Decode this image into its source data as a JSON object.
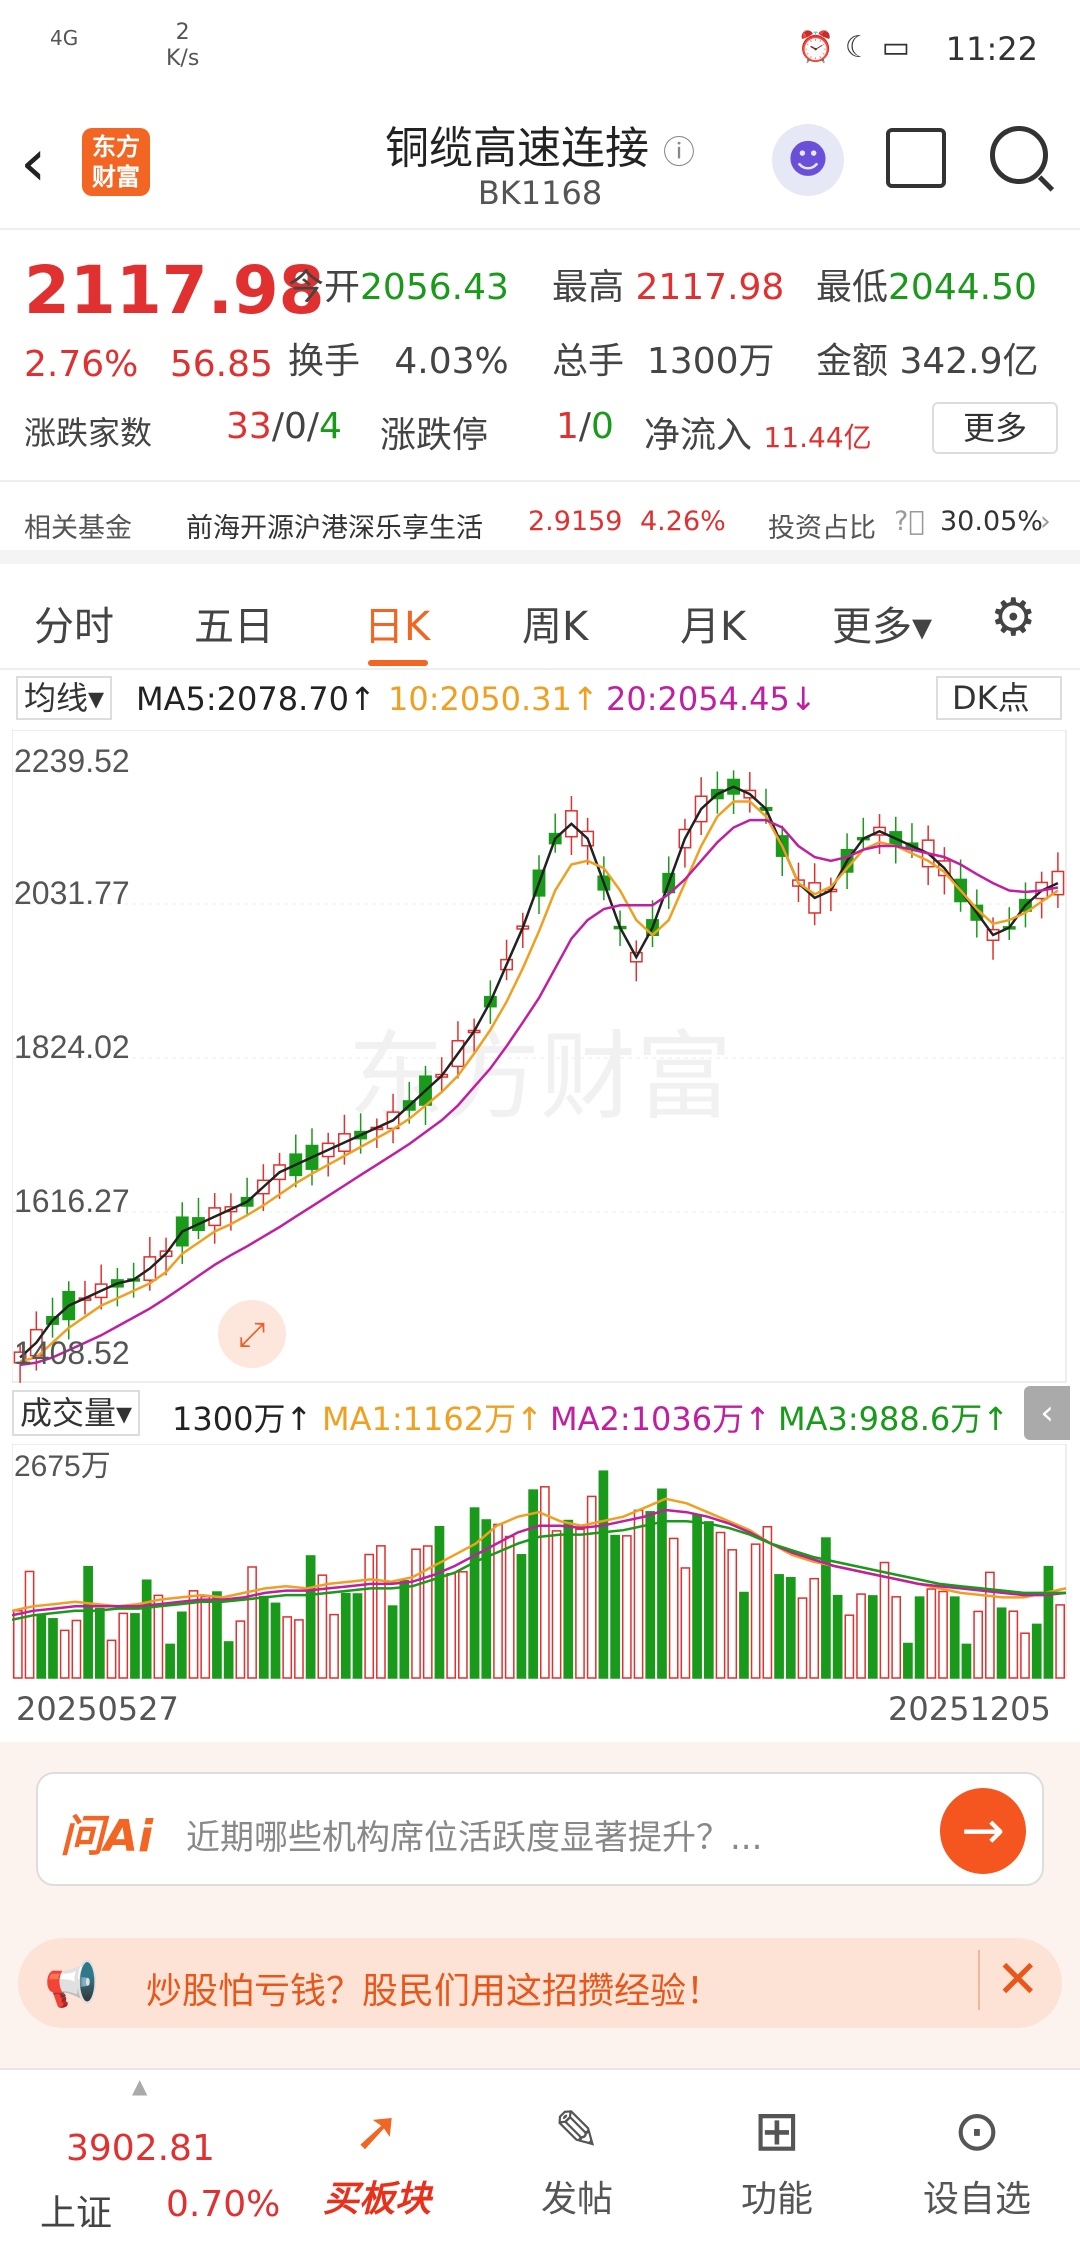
{
  "status_bar": {
    "signal": "4G",
    "speed": "2",
    "speed_unit": "K/s",
    "time": "11:22"
  },
  "header": {
    "title": "铜缆高速连接",
    "code": "BK1168",
    "logo_line1": "东方",
    "logo_line2": "财富"
  },
  "quote": {
    "price": "2117.98",
    "change_pct": "2.76%",
    "change": "56.85",
    "open_label": "今开",
    "open": "2056.43",
    "high_label": "最高",
    "high": "2117.98",
    "low_label": "最低",
    "low": "2044.50",
    "turnover_label": "换手",
    "turnover": "4.03%",
    "volume_label": "总手",
    "volume": "1300万",
    "amount_label": "金额",
    "amount": "342.9亿",
    "breadth_label": "涨跌家数",
    "breadth_up": "33",
    "breadth_flat": "0",
    "breadth_down": "4",
    "sep": "/",
    "limit_label": "涨跌停",
    "limit_up": "1",
    "limit_down": "0",
    "netflow_label": "净流入",
    "netflow": "11.44亿",
    "more_label": "更多"
  },
  "fund": {
    "label": "相关基金",
    "name": "前海开源沪港深乐享生活",
    "value": "2.9159",
    "pct": "4.26%",
    "ratio_label": "投资占比",
    "ratio": "30.05%"
  },
  "tabs": [
    {
      "label": "分时"
    },
    {
      "label": "五日"
    },
    {
      "label": "日K"
    },
    {
      "label": "周K"
    },
    {
      "label": "月K"
    },
    {
      "label": "更多▾"
    }
  ],
  "ma": {
    "selector": "均线▾",
    "ma5": "MA5:2078.70↑",
    "ma10": "10:2050.31↑",
    "ma20": "20:2054.45↓",
    "dk": "DK点",
    "colors": {
      "ma5": "#222222",
      "ma10": "#f0a020",
      "ma20": "#c020a0"
    }
  },
  "vol": {
    "selector": "成交量▾",
    "current": "1300万↑",
    "ma1": "MA1:1162万↑",
    "ma2": "MA2:1036万↑",
    "ma3": "MA3:988.6万↑"
  },
  "chart_data": [
    {
      "type": "candlestick",
      "y_ticks": [
        "2239.52",
        "2031.77",
        "1824.02",
        "1616.27",
        "1408.52"
      ],
      "ylim": [
        1408.52,
        2239.52
      ],
      "watermark": "东方财富",
      "series": [
        {
          "name": "MA5",
          "values": [
            1420,
            1440,
            1470,
            1490,
            1500,
            1510,
            1520,
            1525,
            1540,
            1560,
            1590,
            1600,
            1610,
            1620,
            1630,
            1650,
            1670,
            1680,
            1690,
            1700,
            1710,
            1720,
            1730,
            1740,
            1760,
            1780,
            1800,
            1830,
            1860,
            1900,
            1950,
            2000,
            2060,
            2120,
            2140,
            2120,
            2060,
            2000,
            1960,
            2000,
            2060,
            2120,
            2160,
            2180,
            2190,
            2180,
            2160,
            2110,
            2060,
            2040,
            2050,
            2090,
            2120,
            2130,
            2120,
            2110,
            2100,
            2080,
            2050,
            2020,
            1990,
            2000,
            2030,
            2050,
            2060
          ]
        },
        {
          "name": "MA10",
          "values": [
            1415,
            1420,
            1440,
            1460,
            1475,
            1490,
            1500,
            1510,
            1520,
            1535,
            1560,
            1575,
            1590,
            1600,
            1612,
            1625,
            1640,
            1655,
            1668,
            1680,
            1692,
            1704,
            1716,
            1728,
            1742,
            1760,
            1778,
            1800,
            1830,
            1862,
            1900,
            1945,
            1995,
            2050,
            2085,
            2090,
            2080,
            2050,
            2010,
            1990,
            2010,
            2060,
            2110,
            2150,
            2170,
            2170,
            2150,
            2110,
            2060,
            2045,
            2055,
            2080,
            2105,
            2115,
            2110,
            2100,
            2090,
            2075,
            2050,
            2025,
            2005,
            2010,
            2020,
            2035,
            2050
          ]
        },
        {
          "name": "MA20",
          "values": [
            1410,
            1413,
            1420,
            1430,
            1440,
            1450,
            1462,
            1474,
            1486,
            1500,
            1515,
            1530,
            1545,
            1558,
            1570,
            1583,
            1596,
            1610,
            1624,
            1638,
            1652,
            1666,
            1680,
            1694,
            1708,
            1724,
            1740,
            1760,
            1785,
            1810,
            1840,
            1872,
            1905,
            1945,
            1985,
            2010,
            2025,
            2030,
            2030,
            2030,
            2045,
            2065,
            2090,
            2115,
            2135,
            2145,
            2145,
            2135,
            2110,
            2095,
            2090,
            2095,
            2105,
            2110,
            2110,
            2105,
            2100,
            2095,
            2085,
            2072,
            2060,
            2050,
            2048,
            2050,
            2054
          ]
        }
      ]
    },
    {
      "type": "bar",
      "y_ticks": [
        "2675万"
      ],
      "x_ticks": [
        "20250527",
        "20251205"
      ],
      "series": [
        {
          "name": "MA1",
          "values": [
            0.3,
            0.32,
            0.33,
            0.34,
            0.33,
            0.32,
            0.33,
            0.35,
            0.36,
            0.37,
            0.36,
            0.38,
            0.4,
            0.41,
            0.4,
            0.42,
            0.43,
            0.44,
            0.43,
            0.45,
            0.5,
            0.55,
            0.6,
            0.68,
            0.72,
            0.74,
            0.7,
            0.68,
            0.7,
            0.72,
            0.76,
            0.8,
            0.78,
            0.74,
            0.7,
            0.66,
            0.6,
            0.55,
            0.52,
            0.5,
            0.48,
            0.46,
            0.44,
            0.42,
            0.4,
            0.38,
            0.37,
            0.36,
            0.36,
            0.38,
            0.4
          ]
        },
        {
          "name": "MA2",
          "values": [
            0.28,
            0.3,
            0.31,
            0.32,
            0.32,
            0.32,
            0.32,
            0.33,
            0.34,
            0.35,
            0.35,
            0.36,
            0.38,
            0.39,
            0.39,
            0.4,
            0.41,
            0.42,
            0.42,
            0.43,
            0.46,
            0.5,
            0.55,
            0.6,
            0.65,
            0.68,
            0.68,
            0.67,
            0.68,
            0.7,
            0.72,
            0.75,
            0.74,
            0.72,
            0.69,
            0.65,
            0.6,
            0.56,
            0.53,
            0.5,
            0.48,
            0.46,
            0.44,
            0.42,
            0.41,
            0.4,
            0.39,
            0.38,
            0.37,
            0.37,
            0.38
          ]
        },
        {
          "name": "MA3",
          "values": [
            0.26,
            0.28,
            0.29,
            0.3,
            0.3,
            0.31,
            0.31,
            0.32,
            0.33,
            0.34,
            0.34,
            0.35,
            0.36,
            0.37,
            0.37,
            0.38,
            0.39,
            0.4,
            0.4,
            0.41,
            0.44,
            0.47,
            0.52,
            0.56,
            0.6,
            0.63,
            0.64,
            0.64,
            0.65,
            0.66,
            0.68,
            0.7,
            0.7,
            0.69,
            0.67,
            0.64,
            0.6,
            0.57,
            0.54,
            0.52,
            0.5,
            0.48,
            0.46,
            0.44,
            0.42,
            0.41,
            0.4,
            0.39,
            0.38,
            0.38,
            0.38
          ]
        }
      ]
    }
  ],
  "ai": {
    "brand": "问Ai",
    "question": "近期哪些机构席位活跃度显著提升？..."
  },
  "promo": {
    "text": "炒股怕亏钱？股民们用这招攒经验！"
  },
  "tabbar": {
    "index_value": "3902.81",
    "index_name": "上证",
    "index_pct": "0.70%",
    "items": [
      {
        "label": "买板块"
      },
      {
        "label": "发帖"
      },
      {
        "label": "功能"
      },
      {
        "label": "设自选"
      }
    ]
  }
}
